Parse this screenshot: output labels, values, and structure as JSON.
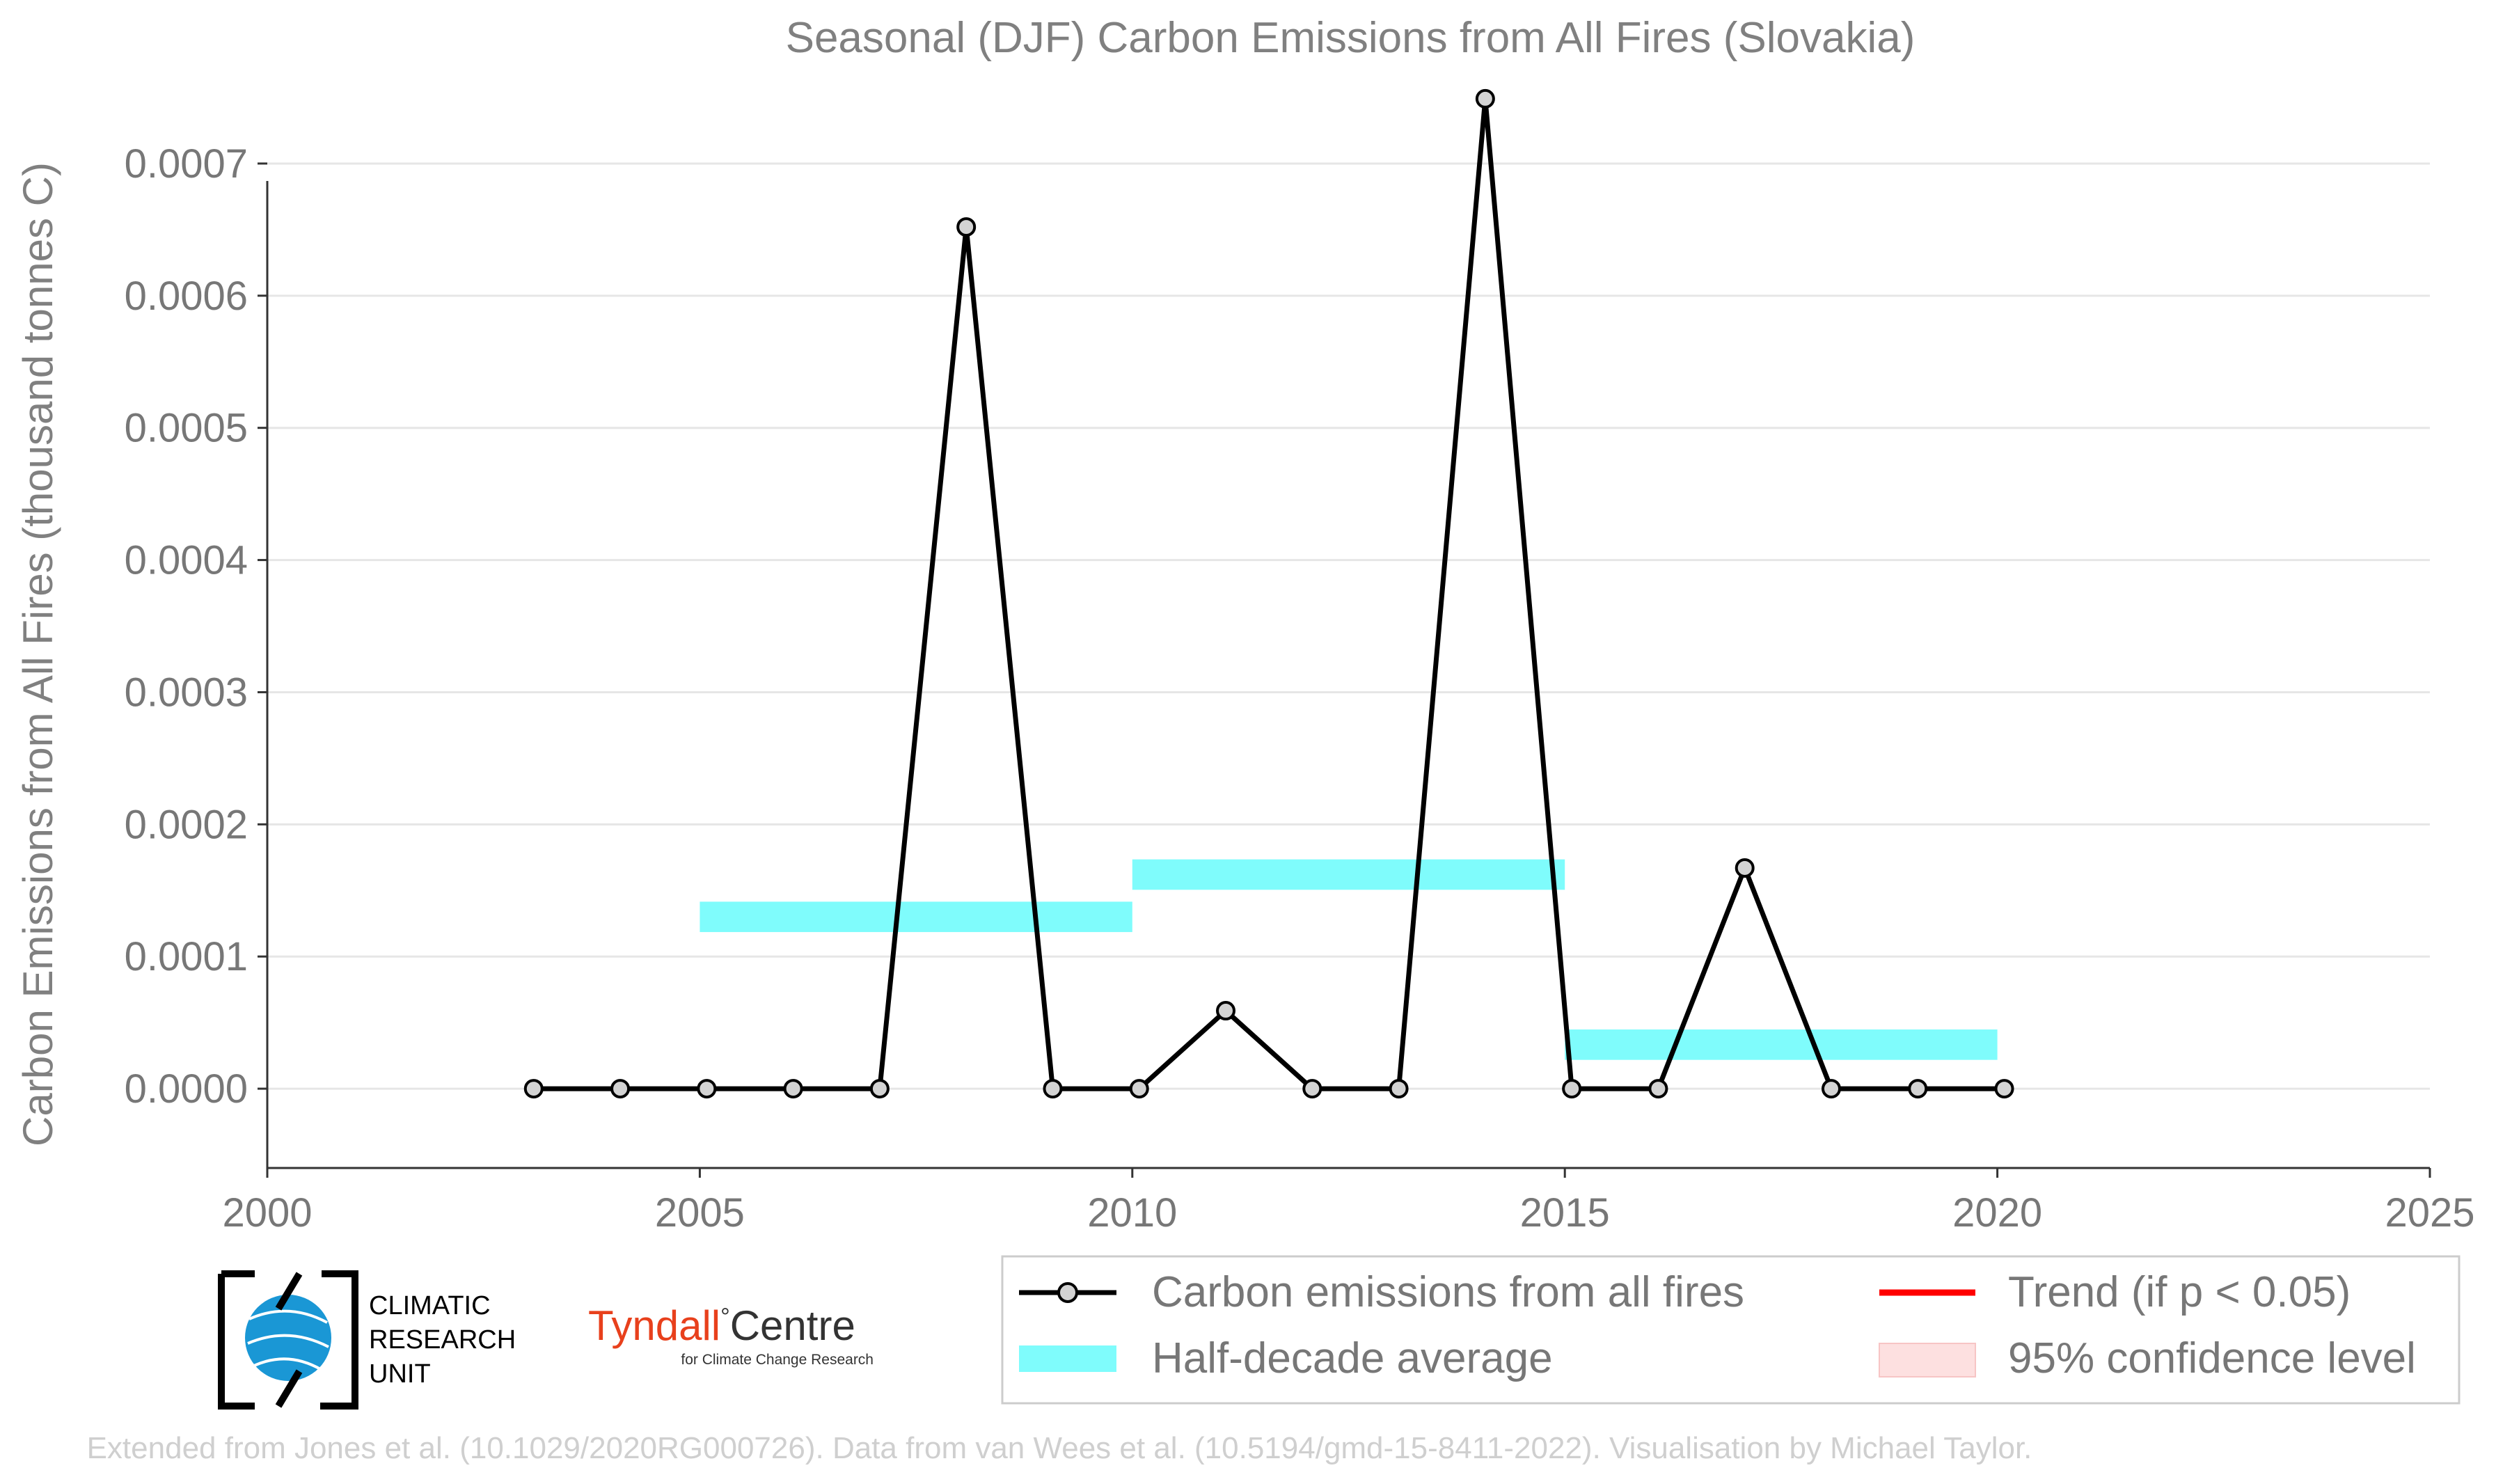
{
  "chart_data": {
    "type": "line",
    "title": "Seasonal (DJF) Carbon Emissions from All Fires (Slovakia)",
    "xlabel": "",
    "ylabel": "Carbon Emissions from All Fires (thousand tonnes C)",
    "xlim": [
      2000,
      2025
    ],
    "ylim": [
      -6e-05,
      0.00075
    ],
    "x_ticks": [
      2000,
      2005,
      2010,
      2015,
      2020,
      2025
    ],
    "x_tick_labels": [
      "2000",
      "2005",
      "2010",
      "2015",
      "2020",
      "2025"
    ],
    "y_ticks": [
      0.0,
      0.0001,
      0.0002,
      0.0003,
      0.0004,
      0.0005,
      0.0006,
      0.0007
    ],
    "y_tick_labels": [
      "0.0000",
      "0.0001",
      "0.0002",
      "0.0003",
      "0.0004",
      "0.0005",
      "0.0006",
      "0.0007"
    ],
    "grid": true,
    "series": [
      {
        "name": "Carbon emissions from all fires",
        "color": "#000000",
        "x": [
          2003,
          2004,
          2005,
          2006,
          2007,
          2008,
          2009,
          2010,
          2011,
          2012,
          2013,
          2014,
          2015,
          2016,
          2017,
          2018,
          2019,
          2020
        ],
        "y": [
          0.0,
          0.0,
          0.0,
          0.0,
          0.0,
          0.000652,
          0.0,
          0.0,
          5.9e-05,
          0.0,
          0.0,
          0.000749,
          0.0,
          0.0,
          0.000167,
          0.0,
          0.0,
          0.0
        ]
      }
    ],
    "half_decade_average": {
      "name": "Half-decade average",
      "color": "#7ffcfc",
      "segments": [
        {
          "x_start": 2005,
          "x_end": 2010,
          "value": 0.00013
        },
        {
          "x_start": 2010,
          "x_end": 2015,
          "value": 0.000162
        },
        {
          "x_start": 2015,
          "x_end": 2020,
          "value": 3.33e-05
        }
      ]
    },
    "legend": {
      "placement": "bottom-right",
      "items": [
        {
          "label": "Carbon emissions from all fires",
          "kind": "line-marker",
          "color": "#000000"
        },
        {
          "label": "Trend (if p < 0.05)",
          "kind": "line",
          "color": "#ff0000"
        },
        {
          "label": "Half-decade average",
          "kind": "band",
          "color": "#7ffcfc"
        },
        {
          "label": "95% confidence level",
          "kind": "patch",
          "color": "#fde0e0"
        }
      ]
    }
  },
  "logos": {
    "cru": {
      "line1": "CLIMATIC",
      "line2": "RESEARCH",
      "line3": "UNIT"
    },
    "tyndall": {
      "name": "Tyndall",
      "degree": "°",
      "centre": "Centre",
      "subtitle": "for Climate Change Research"
    }
  },
  "credit": "Extended from Jones et al. (10.1029/2020RG000726). Data from van Wees et al. (10.5194/gmd-15-8411-2022). Visualisation by Michael Taylor."
}
